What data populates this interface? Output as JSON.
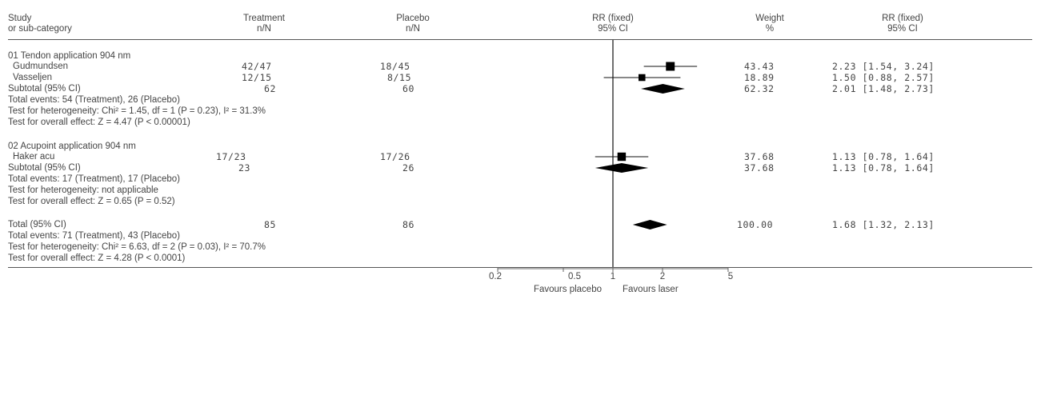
{
  "header": {
    "study": "Study",
    "study_sub": "or sub-category",
    "treatment": "Treatment",
    "treatment_sub": "n/N",
    "placebo": "Placebo",
    "placebo_sub": "n/N",
    "rr": "RR (fixed)",
    "rr_sub": "95% CI",
    "weight": "Weight",
    "weight_sub": "%",
    "rr2": "RR (fixed)",
    "rr2_sub": "95% CI"
  },
  "groups": [
    {
      "title": "01 Tendon application 904 nm",
      "rows": [
        {
          "label": "Gudmundsen",
          "treatment": "42/47",
          "placebo": "18/45",
          "weight": "43.43",
          "ci": "2.23 [1.54, 3.24]"
        },
        {
          "label": "Vasseljen",
          "treatment": "12/15",
          "placebo": "8/15",
          "weight": "18.89",
          "ci": "1.50 [0.88, 2.57]"
        }
      ],
      "subtotal": {
        "label": "Subtotal (95% CI)",
        "treatment": "62",
        "placebo": "60",
        "weight": "62.32",
        "ci": "2.01 [1.48, 2.73]"
      },
      "notes": [
        "Total events: 54 (Treatment), 26 (Placebo)",
        "Test for heterogeneity: Chi² = 1.45, df = 1 (P = 0.23), I² = 31.3%",
        "Test for overall effect: Z = 4.47 (P < 0.00001)"
      ]
    },
    {
      "title": "02 Acupoint application 904 nm",
      "rows": [
        {
          "label": "Haker acu",
          "treatment": "17/23",
          "placebo": "17/26",
          "weight": "37.68",
          "ci": "1.13 [0.78, 1.64]"
        }
      ],
      "subtotal": {
        "label": "Subtotal (95% CI)",
        "treatment": "23",
        "placebo": "26",
        "weight": "37.68",
        "ci": "1.13 [0.78, 1.64]"
      },
      "notes": [
        "Total events: 17 (Treatment), 17 (Placebo)",
        "Test for heterogeneity: not applicable",
        "Test for overall effect: Z = 0.65 (P = 0.52)"
      ]
    }
  ],
  "total": {
    "label": "Total (95% CI)",
    "treatment": "85",
    "placebo": "86",
    "weight": "100.00",
    "ci": "1.68 [1.32, 2.13]",
    "notes": [
      "Total events: 71 (Treatment), 43 (Placebo)",
      "Test for heterogeneity: Chi² = 6.63, df = 2 (P = 0.03), I² = 70.7%",
      "Test for overall effect: Z = 4.28 (P < 0.0001)"
    ]
  },
  "axis": {
    "ticks": [
      "0.2",
      "0.5",
      "1",
      "2",
      "5"
    ],
    "favours_left": "Favours placebo",
    "favours_right": "Favours laser"
  },
  "chart_data": {
    "type": "forest",
    "scale": "log",
    "xlim": [
      0.2,
      5
    ],
    "reference_line": 1,
    "ticks": [
      0.2,
      0.5,
      1,
      2,
      5
    ],
    "studies": [
      {
        "name": "Gudmundsen",
        "rr": 2.23,
        "lo": 1.54,
        "hi": 3.24,
        "weight": 43.43,
        "kind": "study"
      },
      {
        "name": "Vasseljen",
        "rr": 1.5,
        "lo": 0.88,
        "hi": 2.57,
        "weight": 18.89,
        "kind": "study"
      },
      {
        "name": "Subtotal (95% CI)",
        "rr": 2.01,
        "lo": 1.48,
        "hi": 2.73,
        "weight": 62.32,
        "kind": "diamond"
      },
      {
        "name": "Haker acu",
        "rr": 1.13,
        "lo": 0.78,
        "hi": 1.64,
        "weight": 37.68,
        "kind": "study"
      },
      {
        "name": "Subtotal (95% CI)",
        "rr": 1.13,
        "lo": 0.78,
        "hi": 1.64,
        "weight": 37.68,
        "kind": "diamond"
      },
      {
        "name": "Total (95% CI)",
        "rr": 1.68,
        "lo": 1.32,
        "hi": 2.13,
        "weight": 100.0,
        "kind": "diamond"
      }
    ]
  }
}
